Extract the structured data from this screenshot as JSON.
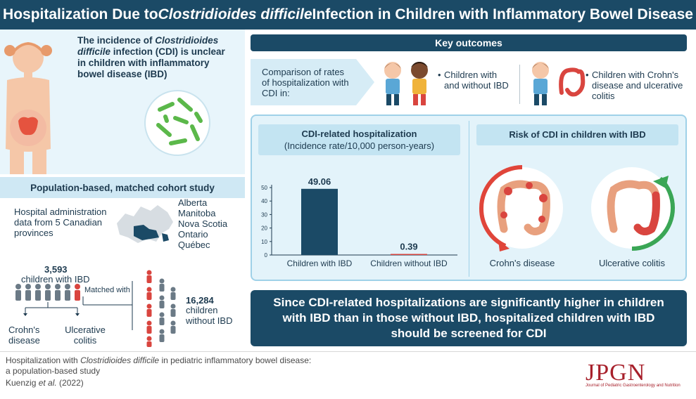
{
  "title": {
    "part1": "Hospitalization Due to ",
    "italic": "Clostridioides difficile",
    "part2": " Infection in Children with Inflammatory Bowel Disease"
  },
  "intro": {
    "line1_pre": "The incidence of ",
    "line1_italic": "Clostridioides difficile",
    "line2": " infection (CDI) is unclear in children with inflammatory bowel disease (IBD)"
  },
  "study": {
    "header": "Population-based, matched cohort study",
    "data_source": "Hospital administration data from 5 Canadian provinces",
    "provinces": [
      "Alberta",
      "Manitoba",
      "Nova Scotia",
      "Ontario",
      "Québec"
    ],
    "ibd_count": "3,593",
    "ibd_label": "children with IBD",
    "matched_label": "Matched with",
    "non_ibd_count": "16,284",
    "non_ibd_label": "children without IBD",
    "crohns": "Crohn's disease",
    "uc": "Ulcerative colitis"
  },
  "key_outcomes": {
    "header": "Key outcomes",
    "comparison": "Comparison of rates of hospitalization with CDI in:",
    "item1": "Children with and without IBD",
    "item2": "Children with Crohn's disease and ulcerative colitis",
    "bullet": "•"
  },
  "chart_data": {
    "type": "bar",
    "title": "CDI-related hospitalization",
    "subtitle": "(Incidence rate/10,000 person-years)",
    "categories": [
      "Children with IBD",
      "Children without IBD"
    ],
    "values": [
      49.06,
      0.39
    ],
    "value_labels": [
      "49.06",
      "0.39"
    ],
    "yticks": [
      0,
      10,
      20,
      30,
      40,
      50
    ],
    "ylim": [
      0,
      55
    ],
    "xlabel": "",
    "ylabel": "",
    "colors": [
      "#1b4a66",
      "#d9453f"
    ]
  },
  "risk": {
    "header": "Risk of CDI in children with IBD",
    "crohns_label": "Crohn's disease",
    "uc_label": "Ulcerative colitis",
    "colors": {
      "higher": "#e0453a",
      "lower": "#3aa655"
    }
  },
  "conclusion": "Since CDI-related hospitalizations are significantly higher in children with IBD than in those without IBD, hospitalized children with IBD should be screened for CDI",
  "footer": {
    "cite_pre": "Hospitalization with ",
    "cite_italic": "Clostridioides difficile",
    "cite_post": " in pediatric inflammatory bowel disease:",
    "cite_line2": "a population-based study",
    "authors_pre": "Kuenzig ",
    "authors_italic": "et al.",
    "authors_post": " (2022)",
    "journal_logo": "JPGN",
    "journal_name": "Journal of Pediatric Gastroenterology and Nutrition"
  },
  "palette": {
    "navy": "#1b4a66",
    "light_blue": "#e3f3fa",
    "red": "#d9453f",
    "grey": "#6b7a86"
  }
}
